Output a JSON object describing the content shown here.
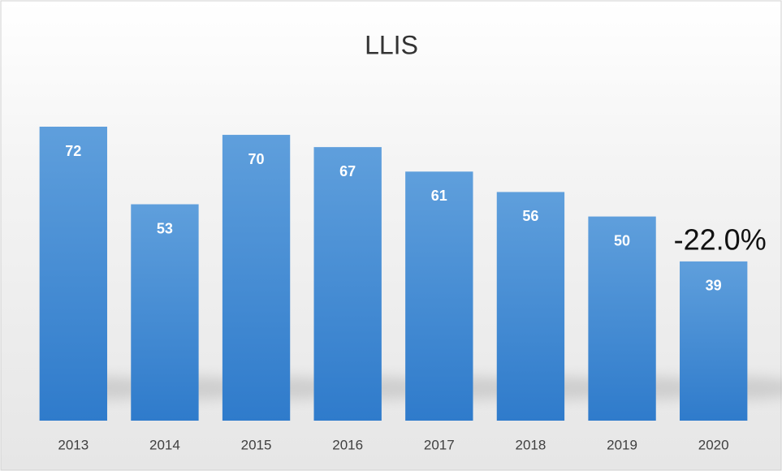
{
  "chart_data": {
    "type": "bar",
    "title": "LLIS",
    "categories": [
      "2013",
      "2014",
      "2015",
      "2016",
      "2017",
      "2018",
      "2019",
      "2020"
    ],
    "values": [
      72,
      53,
      70,
      67,
      61,
      56,
      50,
      39
    ],
    "color": "#4a8fd6",
    "annotation": "-22.0%"
  }
}
